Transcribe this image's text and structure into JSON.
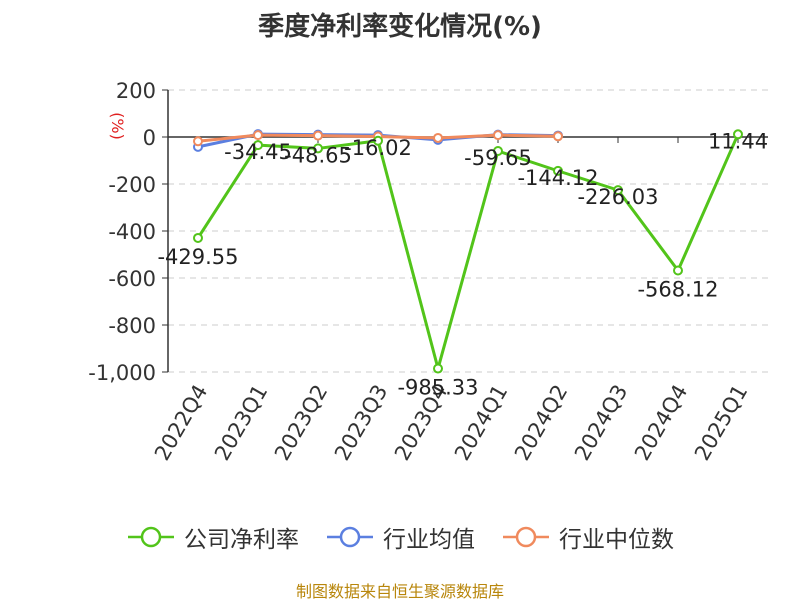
{
  "chart_data": {
    "type": "line",
    "title": "季度净利率变化情况(%)",
    "ylabel": "(%)",
    "categories": [
      "2022Q4",
      "2023Q1",
      "2023Q2",
      "2023Q3",
      "2023Q4",
      "2024Q1",
      "2024Q2",
      "2024Q3",
      "2024Q4",
      "2025Q1"
    ],
    "ylim": [
      -1000,
      200
    ],
    "yticks": [
      200,
      0,
      -200,
      -400,
      -600,
      -800,
      -1000
    ],
    "ytick_labels": [
      "200",
      "0",
      "-200",
      "-400",
      "-600",
      "-800",
      "-1,000"
    ],
    "grid": true,
    "legend_position": "bottom",
    "series": [
      {
        "name": "公司净利率",
        "color": "#52c41a",
        "values": [
          -429.55,
          -34.45,
          -48.65,
          -16.02,
          -985.33,
          -59.65,
          -144.12,
          -226.03,
          -568.12,
          11.44
        ],
        "labels": [
          "-429.55",
          "-34.45",
          "-48.65",
          "-16.02",
          "-985.33",
          "-59.65",
          "-144.12",
          "-226.03",
          "-568.12",
          "11.44"
        ]
      },
      {
        "name": "行业均值",
        "color": "#5b7fe0",
        "values": [
          -42,
          12,
          10,
          8,
          -12,
          10,
          6,
          null,
          null,
          null
        ]
      },
      {
        "name": "行业中位数",
        "color": "#f08a5d",
        "values": [
          -18,
          8,
          6,
          2,
          -4,
          8,
          3,
          null,
          null,
          null
        ]
      }
    ]
  },
  "source": "制图数据来自恒生聚源数据库"
}
